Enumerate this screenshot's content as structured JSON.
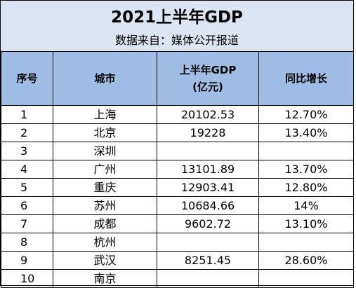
{
  "title": "2021上半年GDP",
  "subtitle": "数据来自：媒体公开报道",
  "columns": [
    "序号",
    "城市",
    "上半年GDP\n(亿元)",
    "同比增长"
  ],
  "rows": [
    {
      "no": "1",
      "city": "上海",
      "gdp": "20102.53",
      "growth": "12.70%"
    },
    {
      "no": "2",
      "city": "北京",
      "gdp": "19228",
      "growth": "13.40%"
    },
    {
      "no": "3",
      "city": "深圳",
      "gdp": "",
      "growth": ""
    },
    {
      "no": "4",
      "city": "广州",
      "gdp": "13101.89",
      "growth": "13.70%"
    },
    {
      "no": "5",
      "city": "重庆",
      "gdp": "12903.41",
      "growth": "12.80%"
    },
    {
      "no": "6",
      "city": "苏州",
      "gdp": "10684.66",
      "growth": "14%"
    },
    {
      "no": "7",
      "city": "成都",
      "gdp": "9602.72",
      "growth": "13.10%"
    },
    {
      "no": "8",
      "city": "杭州",
      "gdp": "",
      "growth": ""
    },
    {
      "no": "9",
      "city": "武汉",
      "gdp": "8251.45",
      "growth": "28.60%"
    },
    {
      "no": "10",
      "city": "南京",
      "gdp": "",
      "growth": ""
    }
  ]
}
